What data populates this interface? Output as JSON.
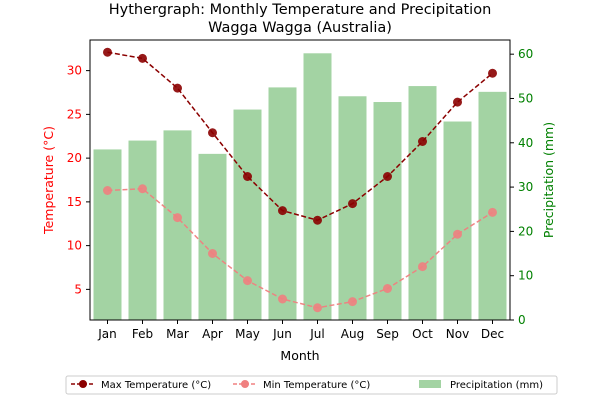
{
  "chart_data": {
    "type": "bar+line",
    "title": "Hythergraph: Monthly Temperature and Precipitation",
    "subtitle": "Wagga Wagga (Australia)",
    "xlabel": "Month",
    "ylabel_left": "Temperature (°C)",
    "ylabel_right": "Precipitation (mm)",
    "categories": [
      "Jan",
      "Feb",
      "Mar",
      "Apr",
      "May",
      "Jun",
      "Jul",
      "Aug",
      "Sep",
      "Oct",
      "Nov",
      "Dec"
    ],
    "ylim_left": [
      1.5,
      33.5
    ],
    "yticks_left": [
      5,
      10,
      15,
      20,
      25,
      30
    ],
    "ylim_right": [
      0,
      63.2
    ],
    "yticks_right": [
      0,
      10,
      20,
      30,
      40,
      50,
      60
    ],
    "series": [
      {
        "name": "Max Temperature (°C)",
        "kind": "line",
        "axis": "left",
        "color": "#8b0000",
        "values": [
          32.1,
          31.4,
          28.0,
          22.9,
          17.9,
          14.0,
          12.9,
          14.8,
          17.9,
          21.9,
          26.4,
          29.7
        ]
      },
      {
        "name": "Min Temperature (°C)",
        "kind": "line",
        "axis": "left",
        "color": "#f08080",
        "values": [
          16.3,
          16.5,
          13.2,
          9.1,
          6.0,
          3.9,
          2.9,
          3.6,
          5.1,
          7.6,
          11.3,
          13.8
        ]
      },
      {
        "name": "Precipitation (mm)",
        "kind": "bar",
        "axis": "right",
        "color": "#a3d3a3",
        "values": [
          38.5,
          40.5,
          42.8,
          37.5,
          47.5,
          52.5,
          60.2,
          50.5,
          49.2,
          52.8,
          44.8,
          51.5
        ]
      }
    ],
    "left_axis_color": "#ff0000",
    "right_axis_color": "#008000",
    "grid": false,
    "legend_position": "bottom"
  }
}
